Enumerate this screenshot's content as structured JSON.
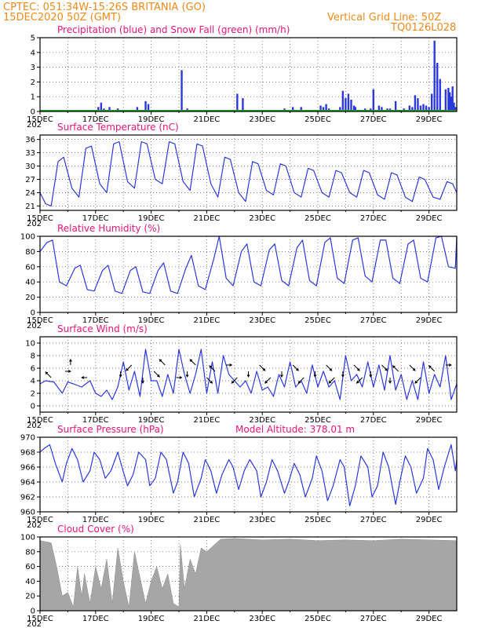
{
  "header": {
    "line1": "CPTEC:   051:34W-15:26S   BRITANIA (GO)",
    "line2_left": "15DEC2020 50Z (GMT)",
    "line2_right": "Vertical Grid Line: 50Z",
    "code": "TQ0126L028"
  },
  "x_axis": {
    "day_start": 15,
    "day_end": 30,
    "ticks": [
      "15DEC",
      "17DEC",
      "19DEC",
      "21DEC",
      "23DEC",
      "25DEC",
      "27DEC",
      "29DEC"
    ],
    "tick_days": [
      15,
      17,
      19,
      21,
      23,
      25,
      27,
      29
    ],
    "year_hint": "202"
  },
  "colors": {
    "series": "#2b38e0",
    "snow": "#24a424",
    "title": "#e6157a",
    "header": "#f08a1c",
    "cloud": "#a6a6a6"
  },
  "chart_data": [
    {
      "id": "precip",
      "type": "bar",
      "title": "Precipitation (blue) and Snow Fall (green) (mm/h)",
      "ylim": [
        0,
        5
      ],
      "yticks": [
        0,
        1,
        2,
        3,
        4,
        5
      ],
      "series": [
        {
          "name": "Precipitation",
          "x": [
            16.3,
            16.5,
            17.1,
            17.2,
            17.3,
            17.5,
            17.8,
            18.0,
            18.5,
            18.8,
            18.9,
            19.2,
            20.1,
            20.3,
            21.0,
            21.6,
            22.1,
            22.3,
            22.6,
            23.4,
            23.8,
            24.1,
            24.4,
            24.9,
            25.1,
            25.2,
            25.3,
            25.4,
            25.8,
            25.9,
            26.0,
            26.1,
            26.2,
            26.3,
            26.35,
            26.5,
            26.7,
            26.9,
            27.0,
            27.2,
            27.3,
            27.5,
            27.6,
            27.8,
            27.9,
            28.1,
            28.3,
            28.4,
            28.5,
            28.6,
            28.7,
            28.8,
            28.9,
            29.0,
            29.1,
            29.2,
            29.3,
            29.4,
            29.6,
            29.7,
            29.75,
            29.8,
            29.85,
            29.9,
            29.95
          ],
          "values": [
            0.1,
            0.1,
            0.3,
            0.6,
            0.2,
            0.3,
            0.2,
            0.1,
            0.3,
            0.7,
            0.5,
            0.1,
            2.8,
            0.2,
            0.1,
            0.1,
            1.2,
            0.9,
            0.1,
            0.1,
            0.2,
            0.3,
            0.3,
            0.1,
            0.4,
            0.3,
            0.5,
            0.2,
            0.3,
            1.4,
            0.9,
            1.2,
            0.8,
            0.4,
            0.3,
            0.1,
            0.2,
            0.2,
            1.5,
            0.4,
            0.3,
            0.2,
            0.2,
            0.7,
            0.1,
            0.2,
            0.4,
            0.3,
            1.1,
            0.9,
            0.4,
            0.5,
            0.4,
            0.3,
            1.2,
            4.8,
            3.3,
            2.2,
            1.5,
            1.6,
            1.3,
            1.0,
            1.7,
            0.6,
            0.3
          ]
        },
        {
          "name": "Snow Fall",
          "x": [
            15,
            30
          ],
          "values": [
            0,
            0
          ]
        }
      ]
    },
    {
      "id": "temp",
      "type": "line",
      "title": "Surface Temperature (nC)",
      "ylim": [
        20,
        37
      ],
      "yticks": [
        21,
        24,
        27,
        30,
        33,
        36
      ],
      "series": [
        {
          "name": "Temperature",
          "x": [
            15.0,
            15.2,
            15.4,
            15.65,
            15.85,
            16.15,
            16.4,
            16.65,
            16.85,
            17.15,
            17.4,
            17.65,
            17.85,
            18.15,
            18.4,
            18.65,
            18.85,
            19.15,
            19.4,
            19.65,
            19.85,
            20.15,
            20.4,
            20.65,
            20.85,
            21.15,
            21.4,
            21.65,
            21.85,
            22.15,
            22.4,
            22.65,
            22.85,
            23.15,
            23.4,
            23.65,
            23.85,
            24.15,
            24.4,
            24.65,
            24.85,
            25.15,
            25.4,
            25.65,
            25.85,
            26.15,
            26.4,
            26.65,
            26.85,
            27.15,
            27.4,
            27.65,
            27.85,
            28.15,
            28.4,
            28.65,
            28.85,
            29.15,
            29.4,
            29.65,
            29.85,
            30.0
          ],
          "values": [
            24,
            21.5,
            21,
            31,
            32,
            25,
            23,
            34,
            34.5,
            26,
            24,
            35,
            35.5,
            26.5,
            25,
            35.5,
            35,
            27,
            26,
            35.5,
            35,
            26.5,
            24.5,
            35,
            34.5,
            26,
            23,
            32,
            31.5,
            24,
            22,
            31,
            30.5,
            24.5,
            23.5,
            30.5,
            30,
            24,
            23,
            29.5,
            29,
            24,
            23,
            29,
            28.5,
            24,
            23,
            29,
            28.5,
            23.5,
            22.5,
            28.5,
            28,
            23,
            22,
            27.5,
            27,
            23,
            22.5,
            26.5,
            26,
            24
          ]
        }
      ]
    },
    {
      "id": "rh",
      "type": "line",
      "title": "Relative Humidity (%)",
      "ylim": [
        0,
        100
      ],
      "yticks": [
        0,
        20,
        40,
        60,
        80,
        100
      ],
      "series": [
        {
          "name": "Humidity",
          "x": [
            15.0,
            15.25,
            15.45,
            15.7,
            15.95,
            16.25,
            16.45,
            16.7,
            16.95,
            17.25,
            17.45,
            17.7,
            17.95,
            18.25,
            18.45,
            18.7,
            18.95,
            19.25,
            19.45,
            19.7,
            19.95,
            20.25,
            20.45,
            20.7,
            20.95,
            21.25,
            21.45,
            21.7,
            21.95,
            22.25,
            22.45,
            22.7,
            22.95,
            23.25,
            23.45,
            23.7,
            23.95,
            24.25,
            24.45,
            24.7,
            24.95,
            25.25,
            25.45,
            25.7,
            25.95,
            26.25,
            26.45,
            26.7,
            26.95,
            27.25,
            27.45,
            27.7,
            27.95,
            28.25,
            28.45,
            28.7,
            28.95,
            29.25,
            29.45,
            29.7,
            29.95,
            30.0
          ],
          "values": [
            80,
            92,
            95,
            40,
            35,
            58,
            62,
            30,
            28,
            55,
            62,
            28,
            25,
            55,
            60,
            27,
            25,
            55,
            65,
            28,
            25,
            58,
            75,
            35,
            30,
            70,
            100,
            45,
            35,
            80,
            90,
            40,
            35,
            82,
            90,
            42,
            35,
            85,
            95,
            42,
            35,
            92,
            98,
            45,
            38,
            95,
            98,
            48,
            40,
            95,
            95,
            45,
            38,
            90,
            95,
            45,
            40,
            98,
            100,
            60,
            58,
            100
          ]
        }
      ]
    },
    {
      "id": "wind",
      "type": "line",
      "title": "Surface Wind (m/s)",
      "ylim": [
        -1,
        11
      ],
      "yticks": [
        0,
        2,
        4,
        6,
        8,
        10
      ],
      "series": [
        {
          "name": "Wind speed",
          "x": [
            15.0,
            15.2,
            15.5,
            15.8,
            16.0,
            16.2,
            16.5,
            16.8,
            17.0,
            17.2,
            17.4,
            17.6,
            17.8,
            18.0,
            18.2,
            18.4,
            18.6,
            18.8,
            19.0,
            19.2,
            19.4,
            19.6,
            19.8,
            20.0,
            20.2,
            20.4,
            20.6,
            20.8,
            21.0,
            21.2,
            21.4,
            21.6,
            21.8,
            22.0,
            22.2,
            22.4,
            22.6,
            22.8,
            23.0,
            23.2,
            23.4,
            23.6,
            23.8,
            24.0,
            24.2,
            24.4,
            24.6,
            24.8,
            25.0,
            25.2,
            25.4,
            25.6,
            25.8,
            26.0,
            26.2,
            26.4,
            26.6,
            26.8,
            27.0,
            27.2,
            27.4,
            27.6,
            27.8,
            28.0,
            28.2,
            28.4,
            28.6,
            28.8,
            29.0,
            29.2,
            29.4,
            29.6,
            29.8,
            30.0
          ],
          "values": [
            3.5,
            4,
            3.8,
            2,
            3.8,
            3.5,
            3,
            4,
            2,
            1.5,
            2.5,
            1,
            3,
            7,
            2.5,
            5.5,
            1.5,
            9,
            4,
            4,
            1.5,
            5,
            2,
            9,
            5,
            2,
            5,
            9,
            2,
            7,
            2,
            8,
            5,
            4,
            3,
            4,
            2,
            5.5,
            2.5,
            3,
            1.5,
            5,
            3,
            7,
            3,
            4,
            2,
            6.5,
            3,
            5.5,
            3,
            4,
            1,
            8,
            4,
            5,
            3,
            7,
            3,
            6.5,
            2.5,
            8,
            2.5,
            5,
            1,
            4,
            1,
            7,
            2,
            5,
            3,
            8,
            1,
            3.5
          ]
        }
      ],
      "arrows": [
        15.4,
        15.9,
        16.1,
        16.7,
        17.9,
        18.3,
        18.7,
        19.1,
        19.5,
        19.9,
        20.3,
        20.6,
        21.0,
        21.3,
        21.7,
        22.1,
        22.5,
        22.9,
        23.3,
        23.7,
        24.1,
        24.5,
        24.9,
        25.3,
        25.6,
        25.9,
        26.3,
        26.6,
        26.9,
        27.3,
        27.6,
        27.9,
        28.3,
        28.7,
        29.2,
        29.6
      ]
    },
    {
      "id": "pres",
      "type": "line",
      "title": "Surface Pressure (hPa)",
      "subtitle": "Model Altitude: 378.01 m",
      "ylim": [
        960,
        970
      ],
      "yticks": [
        960,
        962,
        964,
        966,
        968,
        970
      ],
      "series": [
        {
          "name": "Pressure",
          "x": [
            15.0,
            15.15,
            15.35,
            15.55,
            15.8,
            15.95,
            16.15,
            16.35,
            16.55,
            16.8,
            16.95,
            17.15,
            17.35,
            17.55,
            17.8,
            17.95,
            18.15,
            18.35,
            18.55,
            18.8,
            18.95,
            19.15,
            19.35,
            19.55,
            19.8,
            19.95,
            20.15,
            20.35,
            20.55,
            20.8,
            20.95,
            21.15,
            21.35,
            21.55,
            21.8,
            21.95,
            22.15,
            22.35,
            22.55,
            22.8,
            22.95,
            23.15,
            23.35,
            23.55,
            23.8,
            23.95,
            24.15,
            24.35,
            24.55,
            24.8,
            24.95,
            25.15,
            25.35,
            25.55,
            25.8,
            25.95,
            26.15,
            26.35,
            26.55,
            26.8,
            26.95,
            27.15,
            27.35,
            27.55,
            27.8,
            27.95,
            28.15,
            28.35,
            28.55,
            28.8,
            28.95,
            29.15,
            29.35,
            29.55,
            29.8,
            29.95,
            30.0
          ],
          "values": [
            968,
            968.5,
            969,
            966.5,
            964,
            966.5,
            968.5,
            967,
            964,
            965.5,
            968,
            967,
            964.5,
            965.5,
            968,
            966,
            963.5,
            965,
            968,
            967,
            963.5,
            964.5,
            968,
            967,
            962.5,
            964,
            968,
            966.5,
            962,
            964.5,
            967,
            965.5,
            962.5,
            965,
            967,
            966,
            963,
            965.5,
            967,
            965.5,
            962,
            964,
            967,
            965.5,
            962.5,
            964,
            966.5,
            965,
            962,
            964.5,
            967.5,
            965.5,
            961.5,
            963.5,
            967,
            966,
            960.8,
            963.5,
            967.5,
            966,
            962,
            963.5,
            968,
            966,
            961,
            964,
            967.5,
            966,
            962.5,
            964.5,
            968.5,
            967,
            963,
            966,
            969,
            965.5,
            967
          ]
        }
      ]
    },
    {
      "id": "cloud",
      "type": "area",
      "title": "Cloud Cover (%)",
      "ylim": [
        0,
        100
      ],
      "yticks": [
        0,
        20,
        40,
        60,
        80,
        100
      ],
      "series": [
        {
          "name": "Cloud cover",
          "x": [
            15.0,
            15.4,
            15.6,
            15.7,
            15.8,
            16.0,
            16.1,
            16.2,
            16.35,
            16.5,
            16.6,
            16.8,
            17.0,
            17.2,
            17.4,
            17.6,
            17.8,
            18.0,
            18.2,
            18.4,
            18.6,
            18.8,
            19.0,
            19.2,
            19.4,
            19.6,
            19.8,
            20.0,
            20.05,
            20.2,
            20.4,
            20.6,
            20.8,
            21.0,
            21.5,
            22.0,
            23.0,
            24.0,
            25.0,
            26.0,
            27.0,
            28.0,
            29.0,
            30.0
          ],
          "values": [
            95,
            92,
            60,
            40,
            20,
            25,
            15,
            5,
            60,
            20,
            50,
            10,
            60,
            30,
            70,
            10,
            85,
            40,
            5,
            80,
            45,
            10,
            40,
            60,
            30,
            50,
            10,
            5,
            90,
            30,
            70,
            50,
            85,
            80,
            97,
            98,
            96,
            97,
            95,
            96,
            95,
            97,
            96,
            95
          ]
        }
      ]
    }
  ]
}
